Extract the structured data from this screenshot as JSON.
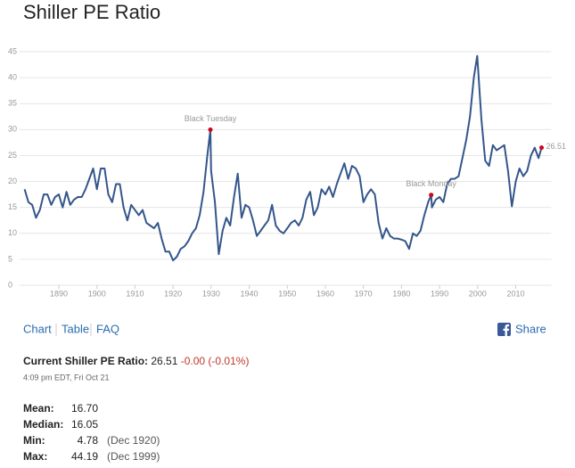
{
  "header": {
    "title": "Shiller PE Ratio"
  },
  "chart_data": {
    "type": "line",
    "color": "#34568b",
    "marker_color": "#d0021b",
    "grid": true,
    "xlim": [
      1881,
      2017.5
    ],
    "ylim": [
      0,
      45
    ],
    "xticks": [
      1890,
      1900,
      1910,
      1920,
      1930,
      1940,
      1950,
      1960,
      1970,
      1980,
      1990,
      2000,
      2010
    ],
    "yticks": [
      0,
      5,
      10,
      15,
      20,
      25,
      30,
      35,
      40,
      45
    ],
    "x": [
      1881,
      1882,
      1883,
      1884,
      1885,
      1886,
      1887,
      1888,
      1889,
      1890,
      1891,
      1892,
      1893,
      1894,
      1895,
      1896,
      1897,
      1898,
      1899,
      1900,
      1901,
      1902,
      1903,
      1904,
      1905,
      1906,
      1907,
      1908,
      1909,
      1910,
      1911,
      1912,
      1913,
      1914,
      1915,
      1916,
      1917,
      1918,
      1919,
      1920,
      1921,
      1922,
      1923,
      1924,
      1925,
      1926,
      1927,
      1928,
      1929,
      1929.8,
      1930,
      1931,
      1932,
      1933,
      1934,
      1935,
      1936,
      1937,
      1938,
      1939,
      1940,
      1941,
      1942,
      1943,
      1944,
      1945,
      1946,
      1947,
      1948,
      1949,
      1950,
      1951,
      1952,
      1953,
      1954,
      1955,
      1956,
      1957,
      1958,
      1959,
      1960,
      1961,
      1962,
      1963,
      1964,
      1965,
      1966,
      1967,
      1968,
      1969,
      1970,
      1971,
      1972,
      1973,
      1974,
      1975,
      1976,
      1977,
      1978,
      1979,
      1980,
      1981,
      1982,
      1983,
      1984,
      1985,
      1986,
      1987,
      1987.8,
      1988,
      1989,
      1990,
      1991,
      1992,
      1993,
      1994,
      1995,
      1996,
      1997,
      1998,
      1999,
      1999.9,
      2000,
      2001,
      2002,
      2003,
      2004,
      2005,
      2006,
      2007,
      2008,
      2009,
      2010,
      2011,
      2012,
      2013,
      2014,
      2015,
      2016,
      2016.8
    ],
    "values": [
      18.5,
      16,
      15.5,
      13,
      14.5,
      17.5,
      17.5,
      15.5,
      17,
      17.5,
      15,
      18,
      15.5,
      16.5,
      17,
      17,
      18.5,
      20.5,
      22.5,
      18.5,
      22.5,
      22.5,
      17.5,
      16,
      19.5,
      19.5,
      15,
      12.5,
      15.5,
      14.5,
      13.5,
      14.5,
      12,
      11.5,
      11,
      12,
      9,
      6.5,
      6.5,
      4.8,
      5.5,
      7,
      7.5,
      8.5,
      10,
      11,
      13.5,
      18,
      25,
      29.97,
      22,
      16,
      6,
      10.5,
      13,
      11.5,
      17,
      21.5,
      13,
      15.5,
      15,
      12.5,
      9.5,
      10.5,
      11.5,
      12.5,
      15.5,
      11.5,
      10.5,
      10,
      11,
      12,
      12.5,
      11.5,
      13,
      16.5,
      18,
      13.5,
      15,
      18.5,
      17.5,
      19,
      17,
      19.5,
      21.5,
      23.5,
      20.5,
      23,
      22.5,
      21,
      16,
      17.5,
      18.5,
      17.5,
      12,
      9,
      11,
      9.5,
      9,
      9,
      8.8,
      8.5,
      7,
      10,
      9.5,
      10.5,
      13.5,
      16,
      17.4,
      15,
      16.5,
      17,
      16,
      19.5,
      20.5,
      20.5,
      21,
      24.5,
      28,
      32.5,
      40,
      44.19,
      43,
      32,
      24,
      23,
      27,
      26,
      26.5,
      27,
      22,
      15.2,
      20,
      22.5,
      21,
      22,
      25,
      26.5,
      24.5,
      26.51
    ],
    "annotations": [
      {
        "label": "Black Tuesday",
        "x": 1929.8,
        "y": 29.97
      },
      {
        "label": "Black Monday",
        "x": 1987.8,
        "y": 17.4
      },
      {
        "x": 2016.8,
        "y": 26.51
      }
    ]
  },
  "nav": [
    "Chart",
    "Table",
    "FAQ"
  ],
  "share": "Share",
  "current": {
    "label": "Current Shiller PE Ratio:",
    "value": "26.51",
    "change": "-0.00 (-0.01%)",
    "time": "4:09 pm EDT, Fri Oct 21"
  },
  "stats": [
    [
      "Mean:",
      "16.70"
    ],
    [
      "Median:",
      "16.05"
    ],
    [
      "Min:",
      "4.78",
      "(Dec 1920)"
    ],
    [
      "Max:",
      "44.19",
      "(Dec 1999)"
    ]
  ]
}
